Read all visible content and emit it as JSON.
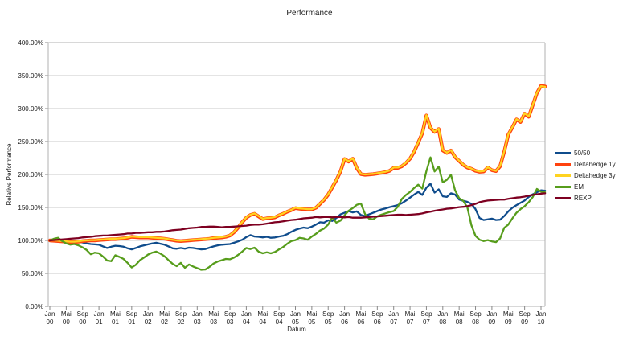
{
  "chart_data": {
    "type": "line",
    "title": "Performance",
    "xlabel": "Datum",
    "ylabel": "Relative Performance",
    "ylim": [
      0,
      400
    ],
    "grid": "horizontal",
    "legend_position": "right",
    "x_unit": "monthly, Jan 2000 - Jan 2010",
    "y_tick_labels": [
      "0.00%",
      "50.00%",
      "100.00%",
      "150.00%",
      "200.00%",
      "250.00%",
      "300.00%",
      "350.00%",
      "400.00%"
    ],
    "x_ticks": [
      {
        "m": "Jan",
        "y": "00"
      },
      {
        "m": "Mai",
        "y": "00"
      },
      {
        "m": "Sep",
        "y": "00"
      },
      {
        "m": "Jan",
        "y": "01"
      },
      {
        "m": "Mai",
        "y": "01"
      },
      {
        "m": "Sep",
        "y": "01"
      },
      {
        "m": "Jan",
        "y": "02"
      },
      {
        "m": "Mai",
        "y": "02"
      },
      {
        "m": "Sep",
        "y": "02"
      },
      {
        "m": "Jan",
        "y": "03"
      },
      {
        "m": "Mai",
        "y": "03"
      },
      {
        "m": "Sep",
        "y": "03"
      },
      {
        "m": "Jan",
        "y": "04"
      },
      {
        "m": "Mai",
        "y": "04"
      },
      {
        "m": "Sep",
        "y": "04"
      },
      {
        "m": "Jan",
        "y": "05"
      },
      {
        "m": "Mai",
        "y": "05"
      },
      {
        "m": "Sep",
        "y": "05"
      },
      {
        "m": "Jan",
        "y": "06"
      },
      {
        "m": "Mai",
        "y": "06"
      },
      {
        "m": "Sep",
        "y": "06"
      },
      {
        "m": "Jan",
        "y": "07"
      },
      {
        "m": "Mai",
        "y": "07"
      },
      {
        "m": "Sep",
        "y": "07"
      },
      {
        "m": "Jan",
        "y": "08"
      },
      {
        "m": "Mai",
        "y": "08"
      },
      {
        "m": "Sep",
        "y": "08"
      },
      {
        "m": "Jan",
        "y": "09"
      },
      {
        "m": "Mai",
        "y": "09"
      },
      {
        "m": "Sep",
        "y": "09"
      },
      {
        "m": "Jan",
        "y": "10"
      }
    ],
    "x_tick_every": 4,
    "series": [
      {
        "name": "50/50",
        "color": "#0f4c8c",
        "values": [
          100,
          100.5,
          100,
          99,
          98.5,
          98,
          97.5,
          98,
          97,
          95.5,
          94.5,
          94,
          93.5,
          91,
          88.5,
          90.5,
          92,
          91.5,
          90.5,
          88,
          86.5,
          88.5,
          91,
          92.5,
          94,
          95.5,
          96.5,
          95,
          93.5,
          91,
          88,
          87.5,
          88.5,
          87.5,
          89,
          88.5,
          87.5,
          86.5,
          87,
          89,
          91,
          92.5,
          93.5,
          94,
          94.5,
          96.5,
          98.5,
          101,
          105,
          108,
          106,
          105.5,
          104.5,
          105.5,
          104,
          104.5,
          106,
          107,
          109.5,
          113,
          116,
          118,
          119.5,
          118.5,
          121,
          124,
          127.5,
          127,
          130.5,
          129.5,
          134,
          139.5,
          142,
          144.5,
          142.5,
          144,
          138.5,
          137,
          139.5,
          142,
          144.5,
          147,
          148.5,
          150.5,
          152,
          153.5,
          156.5,
          160.5,
          165,
          169.5,
          173.5,
          169,
          180,
          186,
          172.5,
          177.5,
          167,
          166,
          171.5,
          169.5,
          162,
          160,
          158.5,
          155.5,
          147.5,
          134,
          131,
          132,
          133,
          131,
          131.5,
          137,
          144,
          149.5,
          153.5,
          157,
          160.5,
          166,
          170,
          173,
          176,
          175.5
        ]
      },
      {
        "name": "Deltahedge 1y",
        "color": "#FF420E",
        "values": [
          100,
          99.5,
          99,
          98.5,
          98,
          97.5,
          97.5,
          98,
          99,
          99.5,
          100,
          100,
          100.5,
          101,
          101.5,
          102,
          102,
          102.5,
          103,
          104,
          105.5,
          105,
          104.5,
          104.5,
          104.5,
          104,
          103.5,
          103,
          102.5,
          101.5,
          100.5,
          99.5,
          99,
          99.5,
          100,
          100.5,
          101,
          101.5,
          102,
          102.5,
          103.5,
          104,
          104.5,
          105.5,
          107.5,
          112.5,
          119.5,
          127.5,
          134.5,
          138.5,
          140.5,
          136.5,
          132.5,
          133.5,
          134,
          135,
          138,
          140.5,
          143.5,
          146,
          149,
          148,
          147.5,
          147,
          147,
          149.5,
          155.5,
          161.5,
          169.5,
          180.5,
          191.5,
          204.5,
          223.5,
          219.5,
          224,
          209.5,
          200.5,
          199.5,
          200,
          200.5,
          201.5,
          202.5,
          203.5,
          205.5,
          210,
          210,
          212.5,
          217.5,
          224,
          234.5,
          248.5,
          262.5,
          289.5,
          270.5,
          264.5,
          269,
          236.5,
          232.5,
          236.5,
          226.5,
          220.5,
          214.5,
          210.5,
          208.5,
          205.5,
          204,
          204.5,
          210.5,
          206.5,
          205,
          212.5,
          234.5,
          260.5,
          271.5,
          283.5,
          279.5,
          292.5,
          287.5,
          305.5,
          323.5,
          334.5,
          333.5
        ]
      },
      {
        "name": "Deltahedge 3y",
        "color": "#FFD320",
        "values": [
          100,
          100,
          99.5,
          99,
          98.5,
          98,
          98,
          98.5,
          99.5,
          100,
          100.5,
          100.5,
          101,
          101.5,
          102,
          102.5,
          102.5,
          103,
          103.5,
          104.5,
          106,
          105.5,
          105,
          105,
          105,
          104.5,
          104,
          103.5,
          103,
          102,
          101,
          100,
          99.5,
          100,
          100.5,
          101,
          101.5,
          102,
          102.5,
          103,
          104,
          104.5,
          105,
          106,
          108,
          113,
          120,
          128,
          135,
          139,
          141,
          137,
          133,
          134,
          134.5,
          135.5,
          138.5,
          141,
          144,
          146.5,
          149.5,
          148.5,
          148,
          147.5,
          147.5,
          150,
          156,
          162,
          170,
          181,
          192,
          205,
          224,
          220,
          224.5,
          210,
          201,
          200,
          200.5,
          201,
          202,
          203,
          204,
          206,
          210.5,
          210.5,
          213,
          218,
          224.5,
          235,
          249,
          263,
          290,
          271,
          265,
          269.5,
          237,
          233,
          237,
          227,
          221,
          215,
          211,
          209,
          206,
          204.5,
          205,
          211,
          207,
          205.5,
          213,
          235,
          261,
          272,
          284,
          280,
          293,
          288,
          306,
          324,
          334,
          333
        ]
      },
      {
        "name": "EM",
        "color": "#579D1C",
        "values": [
          100,
          102.5,
          104,
          99,
          95.5,
          93.5,
          94.5,
          92.5,
          89.5,
          85.5,
          79,
          81.5,
          80.5,
          75.5,
          69.5,
          68.5,
          77.5,
          75,
          72,
          66,
          59,
          63,
          70,
          74,
          78.5,
          81.5,
          83,
          80,
          76,
          70,
          64.5,
          61,
          66,
          58.5,
          63.5,
          60.5,
          58,
          55.5,
          56,
          60,
          65,
          68,
          70,
          72,
          71.5,
          74,
          78,
          83,
          88.5,
          87,
          89,
          83,
          80.5,
          82,
          80.5,
          82.5,
          86.5,
          90,
          95,
          99,
          100.5,
          104,
          103,
          101,
          106,
          110,
          115,
          118,
          124,
          135,
          127,
          130,
          138,
          145,
          149,
          154,
          156,
          140,
          133,
          132,
          136.5,
          139,
          141,
          143,
          144.5,
          151,
          163,
          169,
          173.5,
          179.5,
          184.5,
          178.5,
          205,
          226,
          204.5,
          212,
          188,
          192,
          199.5,
          176,
          164,
          160,
          150,
          123,
          107,
          101,
          99,
          100.5,
          98.5,
          97.5,
          103,
          119,
          124,
          133.5,
          142,
          147.5,
          152,
          158,
          166,
          178,
          174,
          173
        ]
      },
      {
        "name": "REXP",
        "color": "#7E0021",
        "values": [
          100,
          100.5,
          101,
          101.5,
          102,
          102.5,
          103,
          103.5,
          104.5,
          105,
          105.5,
          106.5,
          107,
          107.5,
          107.5,
          108,
          108.5,
          109,
          109.5,
          110.5,
          110.5,
          111.5,
          111.5,
          112,
          112.5,
          112.5,
          113,
          113,
          113.5,
          114.5,
          115.5,
          116,
          116.5,
          117.5,
          118.5,
          119,
          119.5,
          120.5,
          120.5,
          121,
          121,
          120.5,
          120,
          120.5,
          120.5,
          121,
          121.5,
          122,
          122.5,
          123.5,
          124,
          124,
          124.5,
          125.5,
          126.5,
          127.5,
          128,
          129,
          130,
          131,
          131.5,
          132.5,
          133.5,
          134,
          134.5,
          135.5,
          135,
          135.5,
          135.5,
          135,
          135.5,
          135.5,
          135,
          135.5,
          134.5,
          134.5,
          134.5,
          135,
          135.5,
          136,
          136.5,
          137,
          137.5,
          138,
          138.5,
          139,
          139,
          138.5,
          139,
          139.5,
          140,
          141,
          142.5,
          143.5,
          145,
          146,
          147,
          148,
          148.5,
          149.5,
          150.5,
          151,
          152,
          153.5,
          155.5,
          158,
          159.5,
          160.5,
          161,
          161.5,
          162,
          162,
          163,
          164,
          165,
          165.5,
          166.5,
          168,
          169,
          170,
          171,
          171.5
        ]
      }
    ],
    "style": {
      "grid_color": "#c9c9c9",
      "border_color": "#b0b0b0",
      "tick_color": "#888888",
      "text_color": "#1a1a1a",
      "line_width": 2.3,
      "halo_line_width": 4.4
    }
  }
}
